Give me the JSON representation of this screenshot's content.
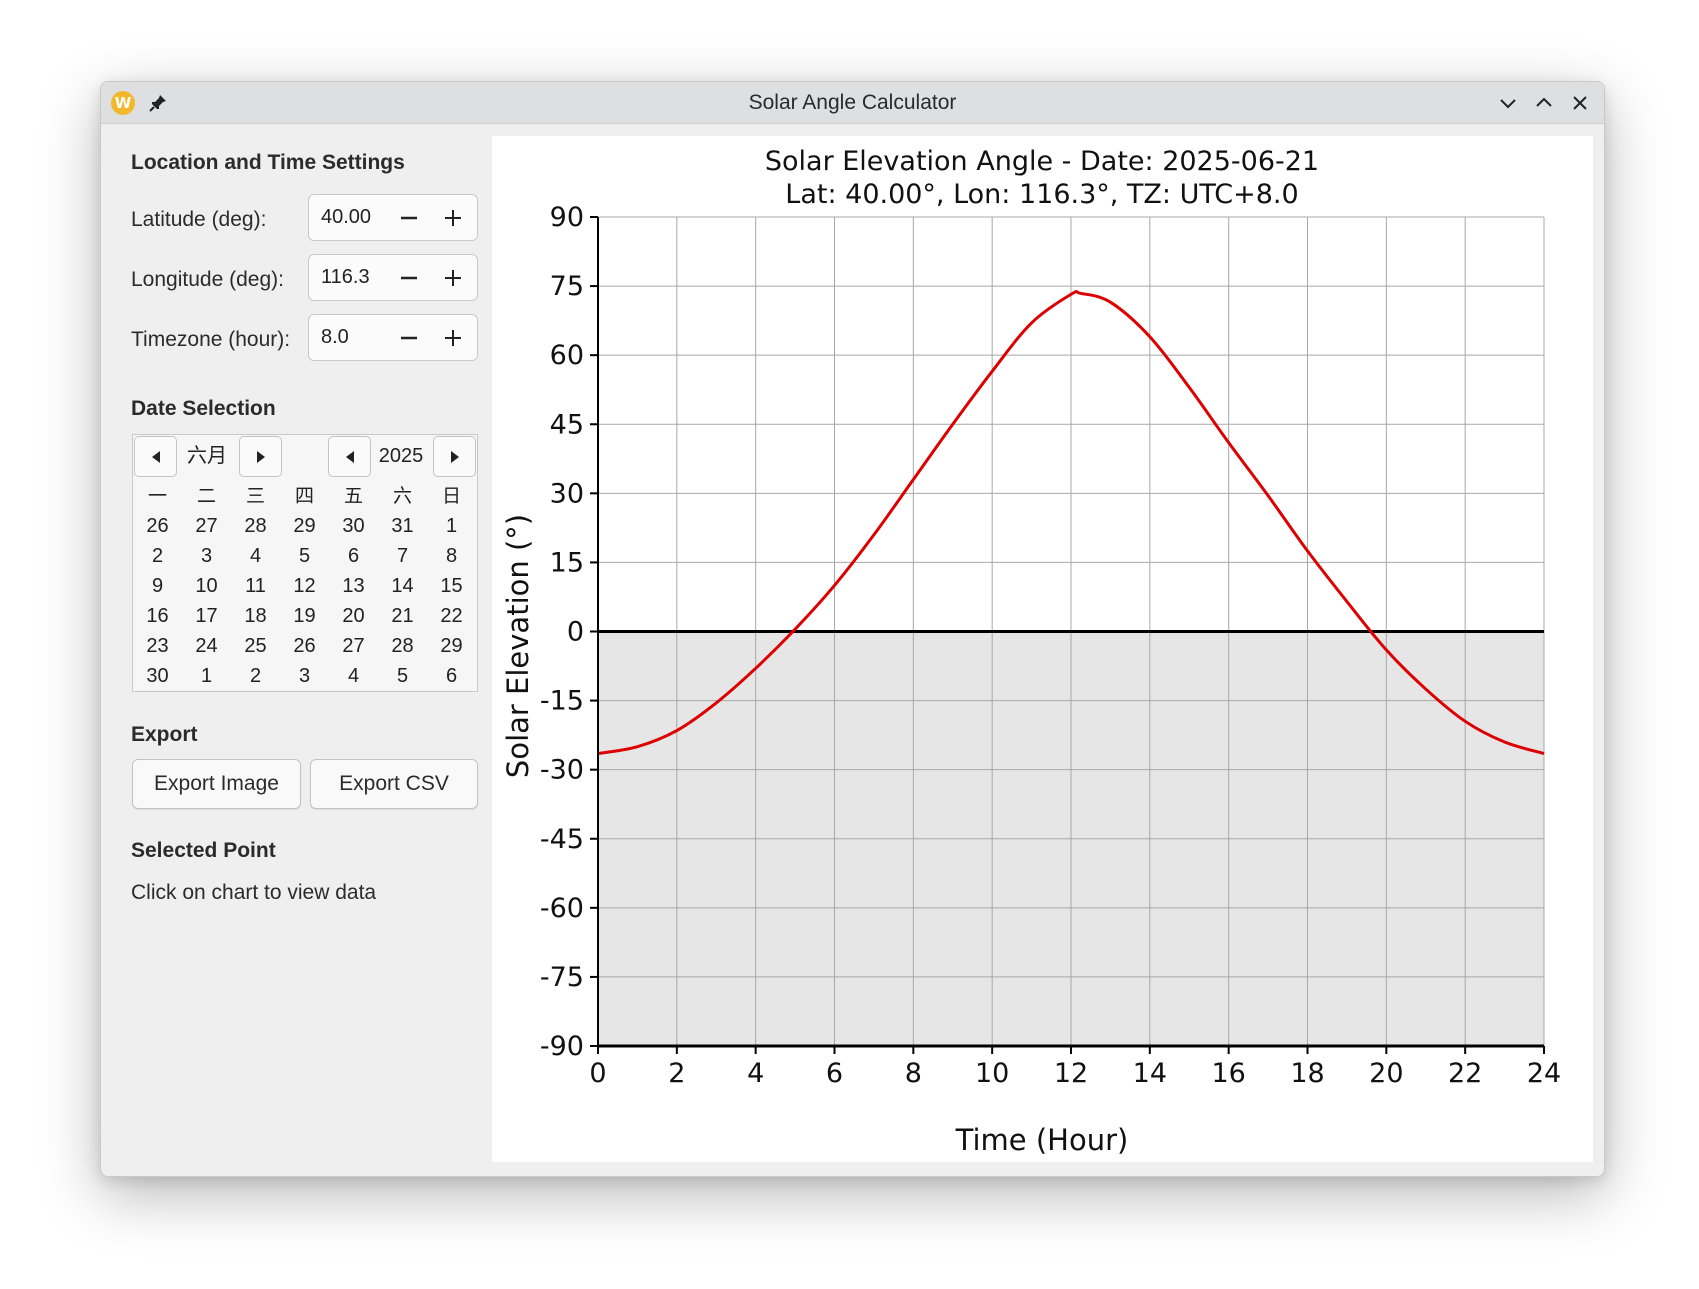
{
  "window": {
    "title": "Solar Angle Calculator",
    "app_icon_letter": "W"
  },
  "sidebar": {
    "location_title": "Location and Time Settings",
    "latitude": {
      "label": "Latitude (deg):",
      "value": "40.00"
    },
    "longitude": {
      "label": "Longitude (deg):",
      "value": "116.3"
    },
    "timezone": {
      "label": "Timezone (hour):",
      "value": "8.0"
    },
    "date_title": "Date Selection",
    "calendar": {
      "month": "六月",
      "year": "2025",
      "weekdays": [
        "一",
        "二",
        "三",
        "四",
        "五",
        "六",
        "日"
      ],
      "weeks": [
        [
          "26",
          "27",
          "28",
          "29",
          "30",
          "31",
          "1"
        ],
        [
          "2",
          "3",
          "4",
          "5",
          "6",
          "7",
          "8"
        ],
        [
          "9",
          "10",
          "11",
          "12",
          "13",
          "14",
          "15"
        ],
        [
          "16",
          "17",
          "18",
          "19",
          "20",
          "21",
          "22"
        ],
        [
          "23",
          "24",
          "25",
          "26",
          "27",
          "28",
          "29"
        ],
        [
          "30",
          "1",
          "2",
          "3",
          "4",
          "5",
          "6"
        ]
      ]
    },
    "export_title": "Export",
    "export_image_label": "Export Image",
    "export_csv_label": "Export CSV",
    "selected_title": "Selected Point",
    "selected_text": "Click on chart to view data"
  },
  "chart_data": {
    "type": "line",
    "title": "Solar Elevation Angle - Date: 2025-06-21",
    "subtitle": "Lat: 40.00°, Lon: 116.3°, TZ: UTC+8.0",
    "xlabel": "Time (Hour)",
    "ylabel": "Solar Elevation (°)",
    "xlim": [
      0,
      24
    ],
    "ylim": [
      -90,
      90
    ],
    "xticks": [
      0,
      2,
      4,
      6,
      8,
      10,
      12,
      14,
      16,
      18,
      20,
      22,
      24
    ],
    "yticks": [
      90,
      75,
      60,
      45,
      30,
      15,
      0,
      -15,
      -30,
      -45,
      -60,
      -75,
      -90
    ],
    "grid": true,
    "colors": {
      "line": "#dd0000",
      "below_horizon": "#e6e6e6",
      "horizon": "#000000"
    },
    "series": [
      {
        "x": [
          0,
          1,
          2,
          3,
          4,
          5,
          6,
          7,
          8,
          9,
          10,
          11,
          12,
          12.25,
          13,
          14,
          15,
          16,
          17,
          18,
          19,
          20,
          21,
          22,
          23,
          24
        ],
        "values": [
          -26.5,
          -25,
          -21.5,
          -15.5,
          -8,
          0.5,
          10,
          21,
          33,
          45,
          56.5,
          67,
          73.2,
          73.4,
          71.5,
          64,
          53,
          41,
          29.5,
          17.5,
          6.5,
          -4,
          -12.5,
          -19.5,
          -24,
          -26.5
        ]
      }
    ]
  }
}
